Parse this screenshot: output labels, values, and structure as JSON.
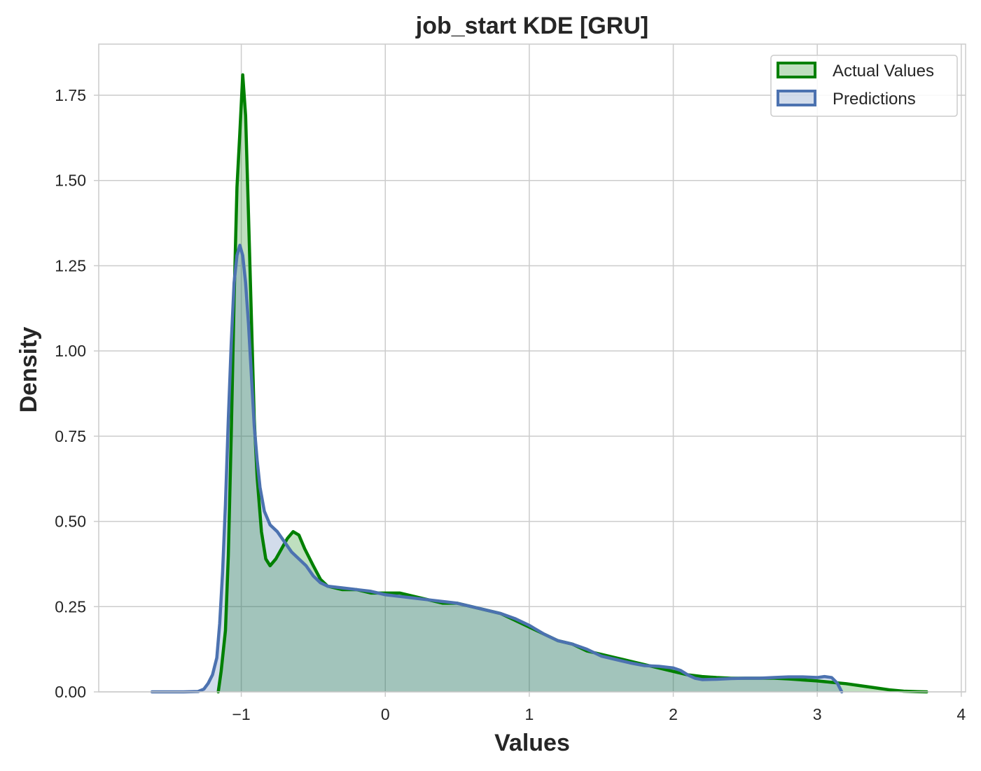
{
  "chart_data": {
    "type": "area",
    "title": "job_start KDE [GRU]",
    "xlabel": "Values",
    "ylabel": "Density",
    "xlim": [
      -1.99,
      4.03
    ],
    "ylim": [
      0,
      1.9
    ],
    "xticks": [
      -1,
      0,
      1,
      2,
      3,
      4
    ],
    "xtick_labels": [
      "−1",
      "0",
      "1",
      "2",
      "3",
      "4"
    ],
    "yticks": [
      0,
      0.25,
      0.5,
      0.75,
      1.0,
      1.25,
      1.5,
      1.75
    ],
    "ytick_labels": [
      "0.00",
      "0.25",
      "0.50",
      "0.75",
      "1.00",
      "1.25",
      "1.50",
      "1.75"
    ],
    "grid": true,
    "legend_position": "top-right",
    "series": [
      {
        "name": "Actual Values",
        "line_color": "#008000",
        "fill_color": "#008000",
        "points": [
          [
            -1.16,
            0.0
          ],
          [
            -1.14,
            0.06
          ],
          [
            -1.11,
            0.18
          ],
          [
            -1.09,
            0.4
          ],
          [
            -1.07,
            0.75
          ],
          [
            -1.05,
            1.15
          ],
          [
            -1.03,
            1.48
          ],
          [
            -1.01,
            1.64
          ],
          [
            -0.99,
            1.81
          ],
          [
            -0.97,
            1.69
          ],
          [
            -0.95,
            1.4
          ],
          [
            -0.93,
            1.1
          ],
          [
            -0.91,
            0.8
          ],
          [
            -0.89,
            0.63
          ],
          [
            -0.86,
            0.47
          ],
          [
            -0.83,
            0.39
          ],
          [
            -0.8,
            0.37
          ],
          [
            -0.76,
            0.39
          ],
          [
            -0.72,
            0.42
          ],
          [
            -0.68,
            0.45
          ],
          [
            -0.64,
            0.47
          ],
          [
            -0.6,
            0.46
          ],
          [
            -0.56,
            0.42
          ],
          [
            -0.5,
            0.37
          ],
          [
            -0.45,
            0.33
          ],
          [
            -0.4,
            0.31
          ],
          [
            -0.3,
            0.3
          ],
          [
            -0.2,
            0.3
          ],
          [
            -0.1,
            0.29
          ],
          [
            0.0,
            0.29
          ],
          [
            0.1,
            0.29
          ],
          [
            0.2,
            0.28
          ],
          [
            0.3,
            0.27
          ],
          [
            0.4,
            0.26
          ],
          [
            0.5,
            0.26
          ],
          [
            0.6,
            0.25
          ],
          [
            0.7,
            0.24
          ],
          [
            0.8,
            0.23
          ],
          [
            0.9,
            0.21
          ],
          [
            1.0,
            0.19
          ],
          [
            1.1,
            0.17
          ],
          [
            1.2,
            0.15
          ],
          [
            1.3,
            0.14
          ],
          [
            1.4,
            0.12
          ],
          [
            1.5,
            0.11
          ],
          [
            1.6,
            0.1
          ],
          [
            1.7,
            0.09
          ],
          [
            1.8,
            0.08
          ],
          [
            1.9,
            0.07
          ],
          [
            2.0,
            0.06
          ],
          [
            2.1,
            0.05
          ],
          [
            2.2,
            0.045
          ],
          [
            2.3,
            0.042
          ],
          [
            2.4,
            0.04
          ],
          [
            2.5,
            0.04
          ],
          [
            2.6,
            0.04
          ],
          [
            2.7,
            0.04
          ],
          [
            2.8,
            0.038
          ],
          [
            2.9,
            0.035
          ],
          [
            3.0,
            0.032
          ],
          [
            3.1,
            0.028
          ],
          [
            3.2,
            0.024
          ],
          [
            3.3,
            0.018
          ],
          [
            3.4,
            0.012
          ],
          [
            3.5,
            0.006
          ],
          [
            3.6,
            0.002
          ],
          [
            3.7,
            0.0005
          ],
          [
            3.76,
            0.0
          ]
        ]
      },
      {
        "name": "Predictions",
        "line_color": "#4c72b0",
        "fill_color": "#4c72b0",
        "points": [
          [
            -1.62,
            0.0
          ],
          [
            -1.4,
            0.0
          ],
          [
            -1.3,
            0.001
          ],
          [
            -1.26,
            0.008
          ],
          [
            -1.23,
            0.025
          ],
          [
            -1.2,
            0.05
          ],
          [
            -1.17,
            0.1
          ],
          [
            -1.15,
            0.2
          ],
          [
            -1.13,
            0.35
          ],
          [
            -1.11,
            0.55
          ],
          [
            -1.09,
            0.8
          ],
          [
            -1.07,
            1.02
          ],
          [
            -1.05,
            1.2
          ],
          [
            -1.03,
            1.28
          ],
          [
            -1.01,
            1.31
          ],
          [
            -0.99,
            1.28
          ],
          [
            -0.97,
            1.2
          ],
          [
            -0.95,
            1.08
          ],
          [
            -0.93,
            0.93
          ],
          [
            -0.91,
            0.78
          ],
          [
            -0.89,
            0.68
          ],
          [
            -0.87,
            0.6
          ],
          [
            -0.84,
            0.53
          ],
          [
            -0.8,
            0.49
          ],
          [
            -0.75,
            0.47
          ],
          [
            -0.7,
            0.44
          ],
          [
            -0.65,
            0.41
          ],
          [
            -0.6,
            0.39
          ],
          [
            -0.55,
            0.37
          ],
          [
            -0.5,
            0.34
          ],
          [
            -0.45,
            0.32
          ],
          [
            -0.4,
            0.31
          ],
          [
            -0.3,
            0.305
          ],
          [
            -0.2,
            0.3
          ],
          [
            -0.1,
            0.295
          ],
          [
            0.0,
            0.285
          ],
          [
            0.1,
            0.28
          ],
          [
            0.2,
            0.275
          ],
          [
            0.3,
            0.27
          ],
          [
            0.4,
            0.265
          ],
          [
            0.5,
            0.26
          ],
          [
            0.6,
            0.25
          ],
          [
            0.7,
            0.24
          ],
          [
            0.8,
            0.23
          ],
          [
            0.9,
            0.215
          ],
          [
            1.0,
            0.195
          ],
          [
            1.1,
            0.17
          ],
          [
            1.2,
            0.15
          ],
          [
            1.3,
            0.14
          ],
          [
            1.4,
            0.125
          ],
          [
            1.5,
            0.105
          ],
          [
            1.6,
            0.095
          ],
          [
            1.7,
            0.085
          ],
          [
            1.8,
            0.077
          ],
          [
            1.9,
            0.075
          ],
          [
            2.0,
            0.07
          ],
          [
            2.05,
            0.063
          ],
          [
            2.1,
            0.05
          ],
          [
            2.15,
            0.04
          ],
          [
            2.2,
            0.036
          ],
          [
            2.3,
            0.037
          ],
          [
            2.4,
            0.039
          ],
          [
            2.5,
            0.04
          ],
          [
            2.6,
            0.04
          ],
          [
            2.7,
            0.042
          ],
          [
            2.8,
            0.044
          ],
          [
            2.9,
            0.044
          ],
          [
            3.0,
            0.042
          ],
          [
            3.05,
            0.045
          ],
          [
            3.1,
            0.042
          ],
          [
            3.14,
            0.025
          ],
          [
            3.17,
            0.0
          ]
        ]
      }
    ]
  }
}
